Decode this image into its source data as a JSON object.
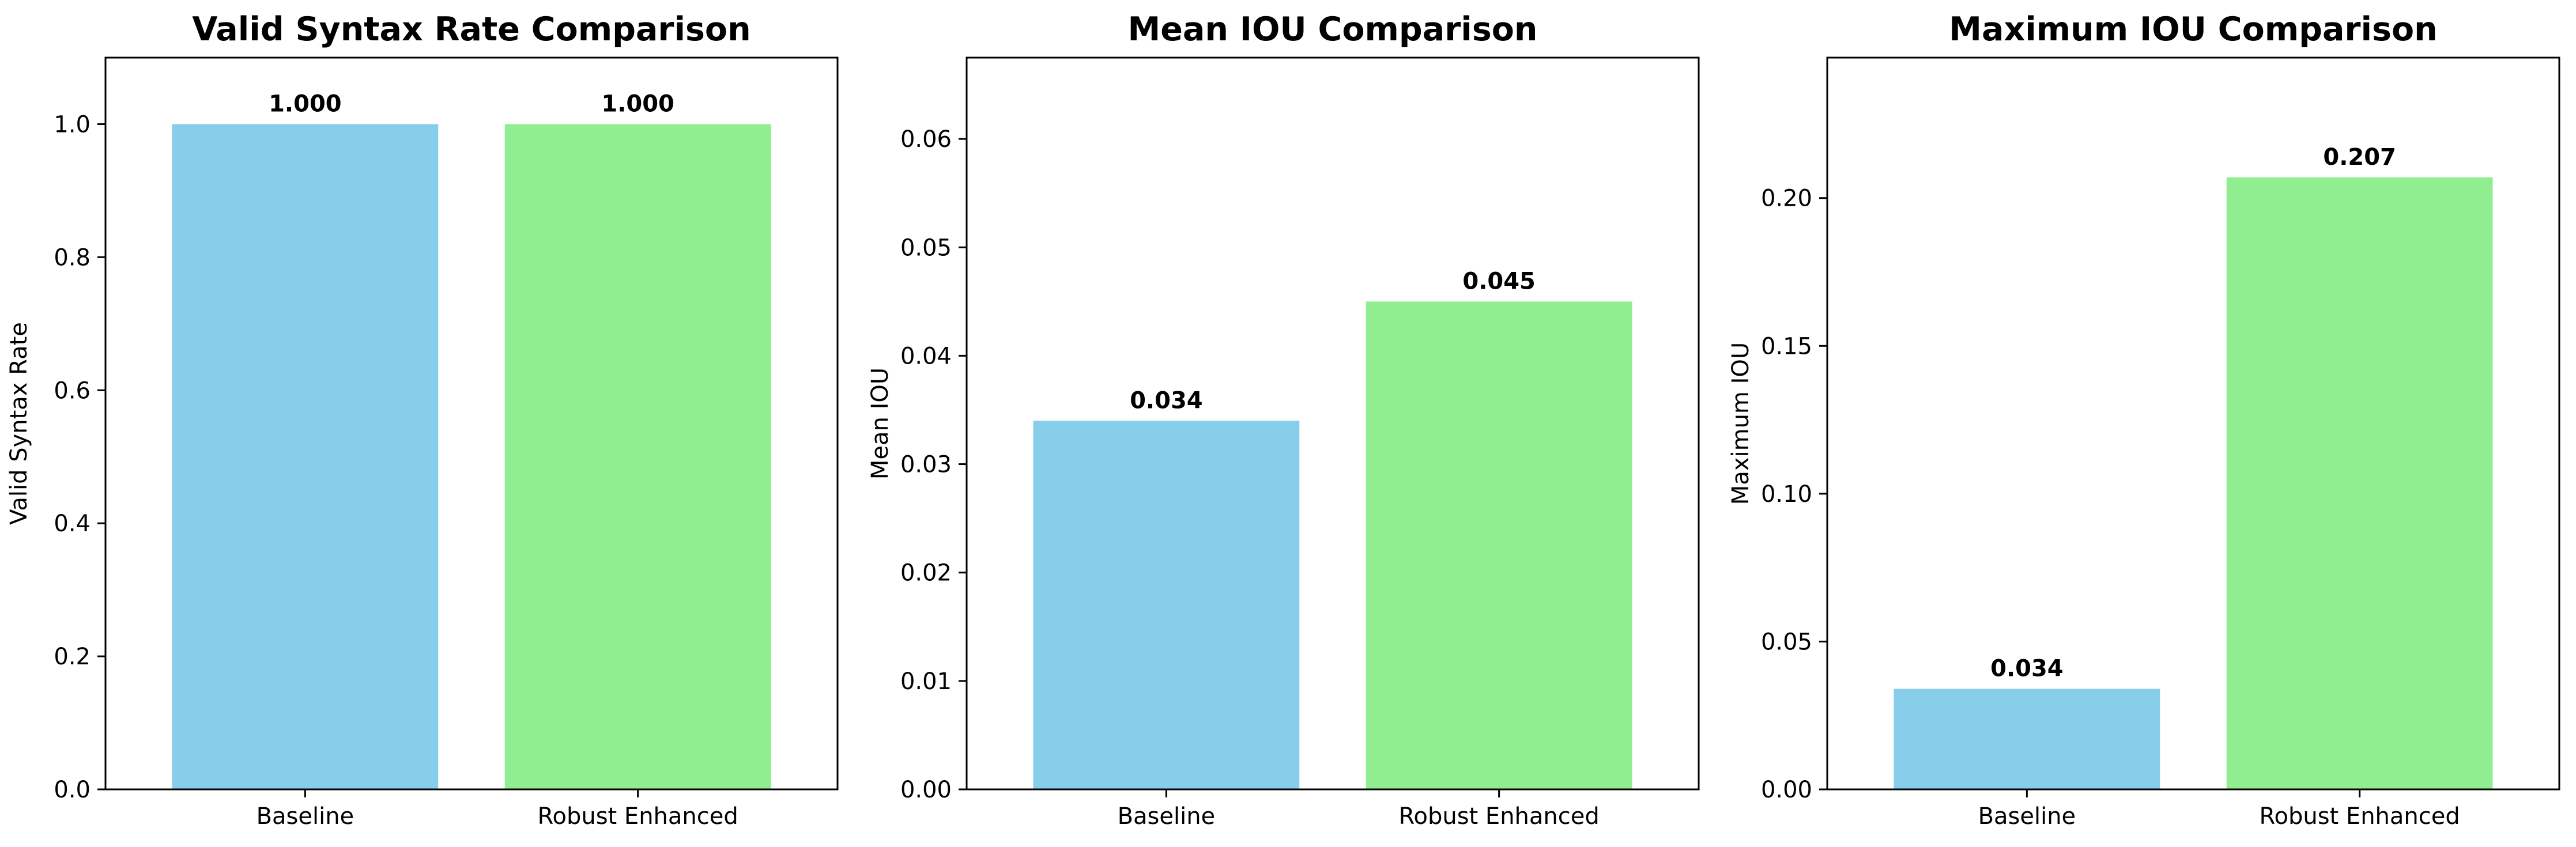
{
  "chart_data": [
    {
      "type": "bar",
      "title": "Valid Syntax Rate Comparison",
      "xlabel": "",
      "ylabel": "Valid Syntax Rate",
      "categories": [
        "Baseline",
        "Robust Enhanced"
      ],
      "values": [
        1.0,
        1.0
      ],
      "value_labels": [
        "1.000",
        "1.000"
      ],
      "colors": [
        "#87CEEB",
        "#90EE90"
      ],
      "ylim": [
        0,
        1.1
      ],
      "yticks": [
        0.0,
        0.2,
        0.4,
        0.6,
        0.8,
        1.0
      ],
      "ytick_labels": [
        "0.0",
        "0.2",
        "0.4",
        "0.6",
        "0.8",
        "1.0"
      ],
      "grid": false
    },
    {
      "type": "bar",
      "title": "Mean IOU Comparison",
      "xlabel": "",
      "ylabel": "Mean IOU",
      "categories": [
        "Baseline",
        "Robust Enhanced"
      ],
      "values": [
        0.034,
        0.045
      ],
      "value_labels": [
        "0.034",
        "0.045"
      ],
      "colors": [
        "#87CEEB",
        "#90EE90"
      ],
      "ylim": [
        0,
        0.0675
      ],
      "yticks": [
        0.0,
        0.01,
        0.02,
        0.03,
        0.04,
        0.05,
        0.06
      ],
      "ytick_labels": [
        "0.00",
        "0.01",
        "0.02",
        "0.03",
        "0.04",
        "0.05",
        "0.06"
      ],
      "grid": false
    },
    {
      "type": "bar",
      "title": "Maximum IOU Comparison",
      "xlabel": "",
      "ylabel": "Maximum IOU",
      "categories": [
        "Baseline",
        "Robust Enhanced"
      ],
      "values": [
        0.034,
        0.207
      ],
      "value_labels": [
        "0.034",
        "0.207"
      ],
      "colors": [
        "#87CEEB",
        "#90EE90"
      ],
      "ylim": [
        0,
        0.2475
      ],
      "yticks": [
        0.0,
        0.05,
        0.1,
        0.15,
        0.2
      ],
      "ytick_labels": [
        "0.00",
        "0.05",
        "0.10",
        "0.15",
        "0.20"
      ],
      "grid": false
    }
  ]
}
